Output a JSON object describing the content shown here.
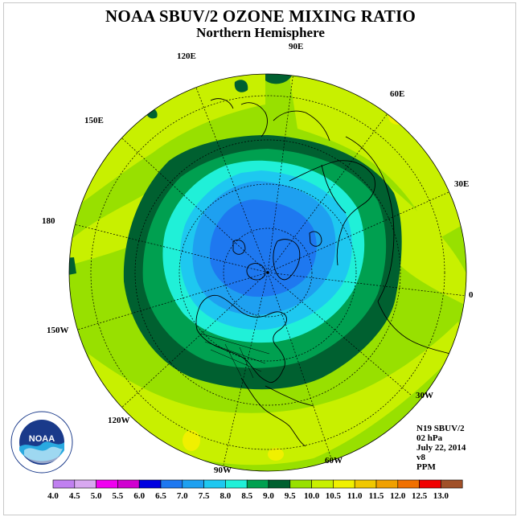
{
  "title": "NOAA SBUV/2 OZONE MIXING RATIO",
  "subtitle": "Northern Hemisphere",
  "info": {
    "instrument": "N19 SBUV/2",
    "pressure": "02 hPa",
    "date": "July 22, 2014",
    "version": "v8",
    "units": "PPM"
  },
  "longitude_labels": [
    "90E",
    "60E",
    "30E",
    "0",
    "30W",
    "60W",
    "90W",
    "120W",
    "150W",
    "180",
    "150E",
    "120E"
  ],
  "logo": {
    "text": "NOAA"
  },
  "colorbar": {
    "ticks": [
      "4.0",
      "4.5",
      "5.0",
      "5.5",
      "6.0",
      "6.5",
      "7.0",
      "7.5",
      "8.0",
      "8.5",
      "9.0",
      "9.5",
      "10.0",
      "10.5",
      "11.0",
      "11.5",
      "12.0",
      "12.5",
      "13.0"
    ],
    "colors": [
      "#c080f0",
      "#d8a8f0",
      "#f000f0",
      "#d000d0",
      "#0000e0",
      "#1e78f0",
      "#1ea0f0",
      "#1ec8f0",
      "#20f0d8",
      "#00a050",
      "#006030",
      "#98e000",
      "#c8f000",
      "#f0f000",
      "#f0c800",
      "#f0a000",
      "#f07000",
      "#f00000",
      "#a05028"
    ]
  },
  "map_colors": {
    "outer": "#98e000",
    "lightband": "#c8f000",
    "yellow": "#f0f000",
    "green_mid": "#00a050",
    "green_dark": "#006030",
    "cyan": "#20f0d8",
    "blue_light": "#1ec8f0",
    "blue_mid": "#1ea0f0",
    "blue_deep": "#1e78f0"
  }
}
